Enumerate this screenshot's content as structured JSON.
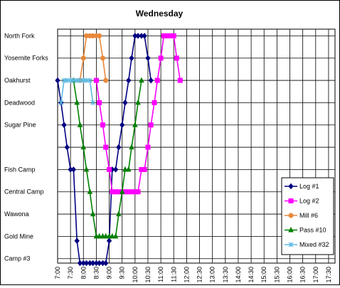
{
  "chart_data": {
    "type": "line",
    "title": "Wednesday",
    "xlabel": "",
    "ylabel": "",
    "categories": [
      "7:00",
      "7:30",
      "8:00",
      "8:30",
      "9:00",
      "9:30",
      "10:00",
      "10:30",
      "11:00",
      "11:30",
      "12:00",
      "12:30",
      "13:00",
      "13:30",
      "14:00",
      "14:30",
      "15:00",
      "15:30",
      "16:00",
      "16:30",
      "17:00",
      "17:30"
    ],
    "x_range_minutes": [
      420,
      1065
    ],
    "y_categories": [
      {
        "label": "North Fork",
        "value": 10
      },
      {
        "label": "Yosemite Forks",
        "value": 9
      },
      {
        "label": "Oakhurst",
        "value": 8
      },
      {
        "label": "Deadwood",
        "value": 7
      },
      {
        "label": "Sugar Pine",
        "value": 6
      },
      {
        "label": "",
        "value": 5
      },
      {
        "label": "Fish Camp",
        "value": 4
      },
      {
        "label": "Central Camp",
        "value": 3
      },
      {
        "label": "Wawona",
        "value": 2
      },
      {
        "label": "Gold Mine",
        "value": 1
      },
      {
        "label": "Camp #3",
        "value": 0
      }
    ],
    "ylim": [
      -0.2,
      10.3
    ],
    "grid": true,
    "legend_position": "bottom-right",
    "series": [
      {
        "name": "Log #1",
        "color": "#000080",
        "marker": "diamond",
        "points": [
          [
            420,
            8
          ],
          [
            428,
            7
          ],
          [
            435,
            6
          ],
          [
            442,
            5
          ],
          [
            450,
            4
          ],
          [
            457,
            4
          ],
          [
            465,
            0.8
          ],
          [
            472,
            -0.2
          ],
          [
            480,
            -0.2
          ],
          [
            487,
            -0.2
          ],
          [
            495,
            -0.2
          ],
          [
            502,
            -0.2
          ],
          [
            510,
            -0.2
          ],
          [
            517,
            -0.2
          ],
          [
            525,
            -0.2
          ],
          [
            532,
            -0.2
          ],
          [
            540,
            0.8
          ],
          [
            547,
            4
          ],
          [
            555,
            4
          ],
          [
            562,
            5
          ],
          [
            570,
            6
          ],
          [
            577,
            7
          ],
          [
            585,
            8
          ],
          [
            592,
            9
          ],
          [
            600,
            10
          ],
          [
            607,
            10
          ],
          [
            615,
            10
          ],
          [
            622,
            10
          ],
          [
            630,
            9
          ],
          [
            637,
            8
          ]
        ]
      },
      {
        "name": "Log #2",
        "color": "#ff00ff",
        "marker": "square",
        "points": [
          [
            510,
            8
          ],
          [
            517,
            7
          ],
          [
            525,
            6
          ],
          [
            532,
            5
          ],
          [
            540,
            4
          ],
          [
            547,
            3
          ],
          [
            555,
            3
          ],
          [
            562,
            3
          ],
          [
            570,
            3
          ],
          [
            577,
            3
          ],
          [
            585,
            3
          ],
          [
            592,
            3
          ],
          [
            600,
            3
          ],
          [
            607,
            3
          ],
          [
            615,
            4
          ],
          [
            622,
            4
          ],
          [
            630,
            5
          ],
          [
            637,
            6
          ],
          [
            645,
            7
          ],
          [
            652,
            8
          ],
          [
            660,
            9
          ],
          [
            667,
            10
          ],
          [
            675,
            10
          ],
          [
            682,
            10
          ],
          [
            690,
            10
          ],
          [
            697,
            9
          ],
          [
            705,
            8
          ]
        ]
      },
      {
        "name": "Mill #6",
        "color": "#e8883a",
        "marker": "circle",
        "points": [
          [
            472,
            8
          ],
          [
            480,
            9
          ],
          [
            487,
            10
          ],
          [
            495,
            10
          ],
          [
            502,
            10
          ],
          [
            510,
            10
          ],
          [
            517,
            10
          ],
          [
            525,
            9
          ],
          [
            532,
            8
          ]
        ]
      },
      {
        "name": "Pass #10",
        "color": "#008000",
        "marker": "triangle",
        "points": [
          [
            457,
            8
          ],
          [
            465,
            7
          ],
          [
            472,
            6
          ],
          [
            480,
            5
          ],
          [
            487,
            4
          ],
          [
            495,
            3
          ],
          [
            502,
            2
          ],
          [
            510,
            1
          ],
          [
            517,
            1
          ],
          [
            525,
            1
          ],
          [
            532,
            1
          ],
          [
            540,
            1
          ],
          [
            547,
            1
          ],
          [
            555,
            1
          ],
          [
            562,
            2
          ],
          [
            570,
            3
          ],
          [
            577,
            4
          ],
          [
            585,
            4
          ],
          [
            592,
            5
          ],
          [
            600,
            6
          ],
          [
            607,
            7
          ],
          [
            615,
            8
          ]
        ]
      },
      {
        "name": "Mixed #32",
        "color": "#5cb8e0",
        "marker": "star",
        "points": [
          [
            428,
            7
          ],
          [
            435,
            8
          ],
          [
            442,
            8
          ],
          [
            450,
            8
          ],
          [
            457,
            8
          ],
          [
            465,
            8
          ],
          [
            472,
            8
          ],
          [
            480,
            8
          ],
          [
            487,
            8
          ],
          [
            495,
            8
          ],
          [
            502,
            7
          ]
        ]
      }
    ]
  }
}
